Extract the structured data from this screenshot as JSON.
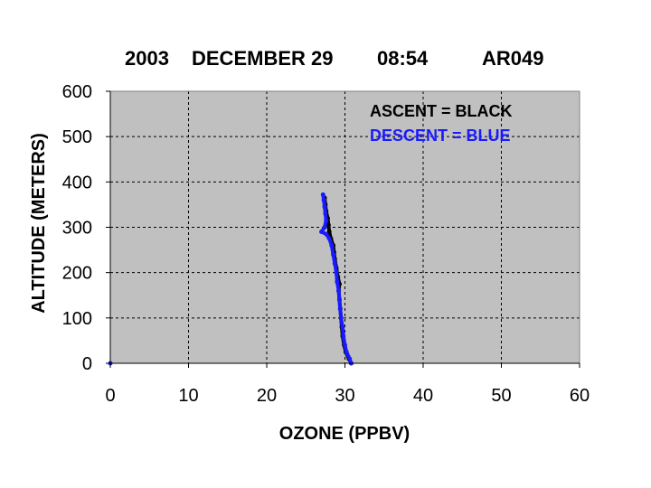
{
  "chart_data": {
    "type": "line",
    "title_parts": [
      "2003",
      "DECEMBER 29",
      "08:54",
      "AR049"
    ],
    "xlabel": "OZONE (PPBV)",
    "ylabel": "ALTITUDE (METERS)",
    "xlim": [
      0,
      60
    ],
    "ylim": [
      0,
      600
    ],
    "x_ticks": [
      "0",
      "10",
      "20",
      "30",
      "40",
      "50",
      "60"
    ],
    "y_ticks": [
      "0",
      "100",
      "200",
      "300",
      "400",
      "500",
      "600"
    ],
    "grid": true,
    "plot_background": "#c0c0c0",
    "legend": [
      {
        "text": "ASCENT   = BLACK",
        "color": "#000000"
      },
      {
        "text": "DESCENT = BLUE",
        "color": "#1a1aff"
      }
    ],
    "series": [
      {
        "color": "#000000",
        "points": [
          [
            30.8,
            0
          ],
          [
            30.5,
            10
          ],
          [
            30.1,
            25
          ],
          [
            29.9,
            40
          ],
          [
            29.7,
            60
          ],
          [
            29.6,
            80
          ],
          [
            29.5,
            100
          ],
          [
            29.4,
            120
          ],
          [
            29.3,
            140
          ],
          [
            29.2,
            160
          ],
          [
            29.3,
            175
          ],
          [
            29.1,
            190
          ],
          [
            28.9,
            210
          ],
          [
            28.7,
            230
          ],
          [
            28.6,
            245
          ],
          [
            28.5,
            260
          ],
          [
            28.2,
            275
          ],
          [
            28.0,
            290
          ],
          [
            27.9,
            305
          ],
          [
            27.8,
            320
          ],
          [
            27.6,
            335
          ],
          [
            27.5,
            350
          ],
          [
            27.4,
            365
          ]
        ]
      },
      {
        "color": "#1a1aff",
        "points": [
          [
            30.8,
            0
          ],
          [
            30.6,
            10
          ],
          [
            30.2,
            25
          ],
          [
            30.0,
            40
          ],
          [
            29.8,
            60
          ],
          [
            29.7,
            80
          ],
          [
            29.5,
            100
          ],
          [
            29.4,
            120
          ],
          [
            29.3,
            140
          ],
          [
            29.2,
            160
          ],
          [
            29.0,
            180
          ],
          [
            28.9,
            200
          ],
          [
            28.7,
            220
          ],
          [
            28.5,
            240
          ],
          [
            28.3,
            260
          ],
          [
            28.0,
            275
          ],
          [
            27.6,
            285
          ],
          [
            27.0,
            290
          ],
          [
            27.4,
            300
          ],
          [
            27.6,
            315
          ],
          [
            27.5,
            330
          ],
          [
            27.4,
            345
          ],
          [
            27.3,
            360
          ],
          [
            27.2,
            372
          ]
        ]
      },
      {
        "color": "#1a1aff",
        "points": [
          [
            0,
            0
          ]
        ]
      }
    ]
  }
}
